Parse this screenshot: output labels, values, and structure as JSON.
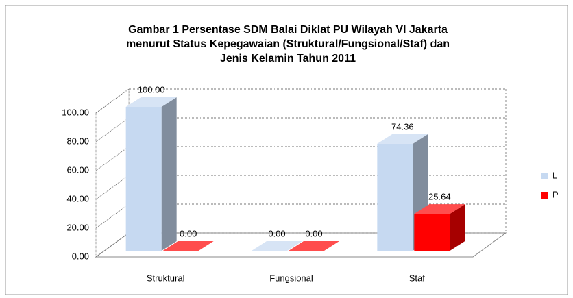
{
  "chart_data": {
    "type": "bar3d",
    "title": [
      "Gambar 1 Persentase SDM Balai Diklat PU Wilayah VI Jakarta",
      "menurut Status Kepegawaian (Struktural/Fungsional/Staf) dan",
      "Jenis Kelamin Tahun 2011"
    ],
    "categories": [
      "Struktural",
      "Fungsional",
      "Staf"
    ],
    "series": [
      {
        "name": "L",
        "color": "#c6d9f1",
        "values": [
          100,
          0,
          74.36
        ],
        "value_labels": [
          "100.00",
          "0.00",
          "74.36"
        ]
      },
      {
        "name": "P",
        "color": "#ff0000",
        "values": [
          0,
          0,
          25.64
        ],
        "value_labels": [
          "0.00",
          "0.00",
          "25.64"
        ]
      }
    ],
    "ylim": [
      0,
      100
    ],
    "yticks": [
      {
        "value": 0,
        "label": "0.00"
      },
      {
        "value": 20,
        "label": "20.00"
      },
      {
        "value": 40,
        "label": "40.00"
      },
      {
        "value": 60,
        "label": "60.00"
      },
      {
        "value": 80,
        "label": "80.00"
      },
      {
        "value": 100,
        "label": "100.00"
      }
    ],
    "grid": true,
    "legend": "right"
  }
}
